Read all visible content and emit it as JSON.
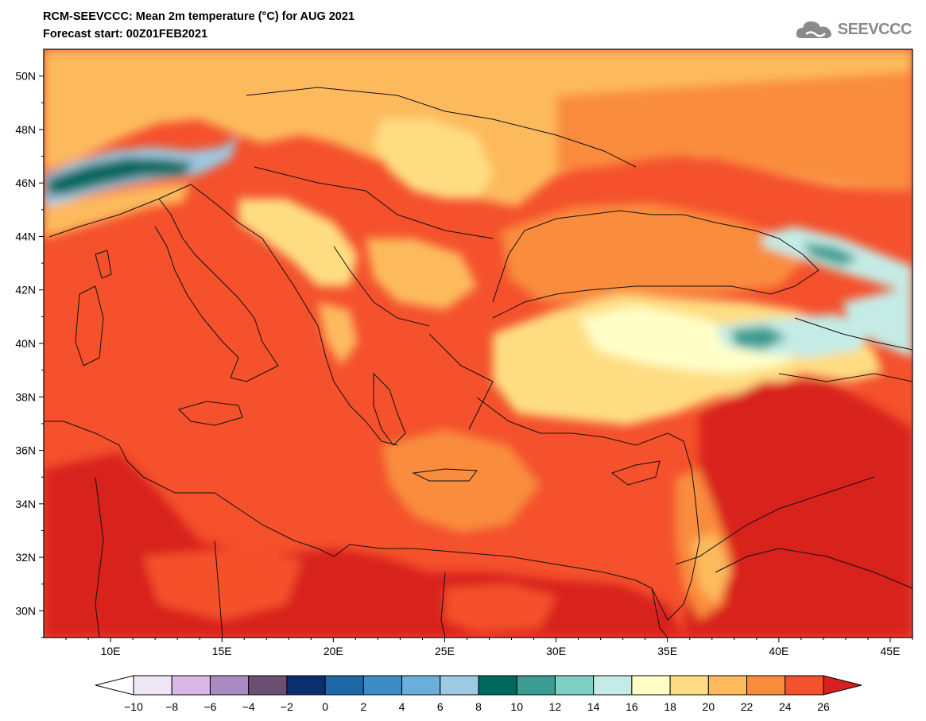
{
  "title": "RCM-SEEVCCC: Mean 2m temperature (°C) for AUG 2021",
  "subtitle": "Forecast start: 00Z01FEB2021",
  "logo": {
    "icon": "cloud-icon",
    "text": "SEEVCCC"
  },
  "map": {
    "lon_range": [
      7,
      46
    ],
    "lat_range": [
      29,
      51
    ],
    "lat_ticks": [
      "50N",
      "48N",
      "46N",
      "44N",
      "42N",
      "40N",
      "38N",
      "36N",
      "34N",
      "32N",
      "30N"
    ],
    "lat_values": [
      50,
      48,
      46,
      44,
      42,
      40,
      38,
      36,
      34,
      32,
      30
    ],
    "lon_ticks": [
      "10E",
      "15E",
      "20E",
      "25E",
      "30E",
      "35E",
      "40E",
      "45E"
    ],
    "lon_values": [
      10,
      15,
      20,
      25,
      30,
      35,
      40,
      45
    ]
  },
  "colorbar": {
    "labels": [
      "−10",
      "−8",
      "−6",
      "−4",
      "−2",
      "0",
      "2",
      "4",
      "6",
      "8",
      "10",
      "12",
      "14",
      "16",
      "18",
      "20",
      "22",
      "24",
      "26"
    ],
    "low_color": "#ffffff",
    "high_color": "#d8201e",
    "colors": [
      "#efe6f5",
      "#d9b8e6",
      "#a98ac1",
      "#6b4f72",
      "#0d2e6e",
      "#1f66a6",
      "#3b8cc4",
      "#6aafda",
      "#9dc9e3",
      "#00695e",
      "#3a9c92",
      "#7fcfc2",
      "#c4ebe5",
      "#fffec7",
      "#fedd82",
      "#fdba5d",
      "#f98c3c",
      "#f4512c"
    ]
  }
}
